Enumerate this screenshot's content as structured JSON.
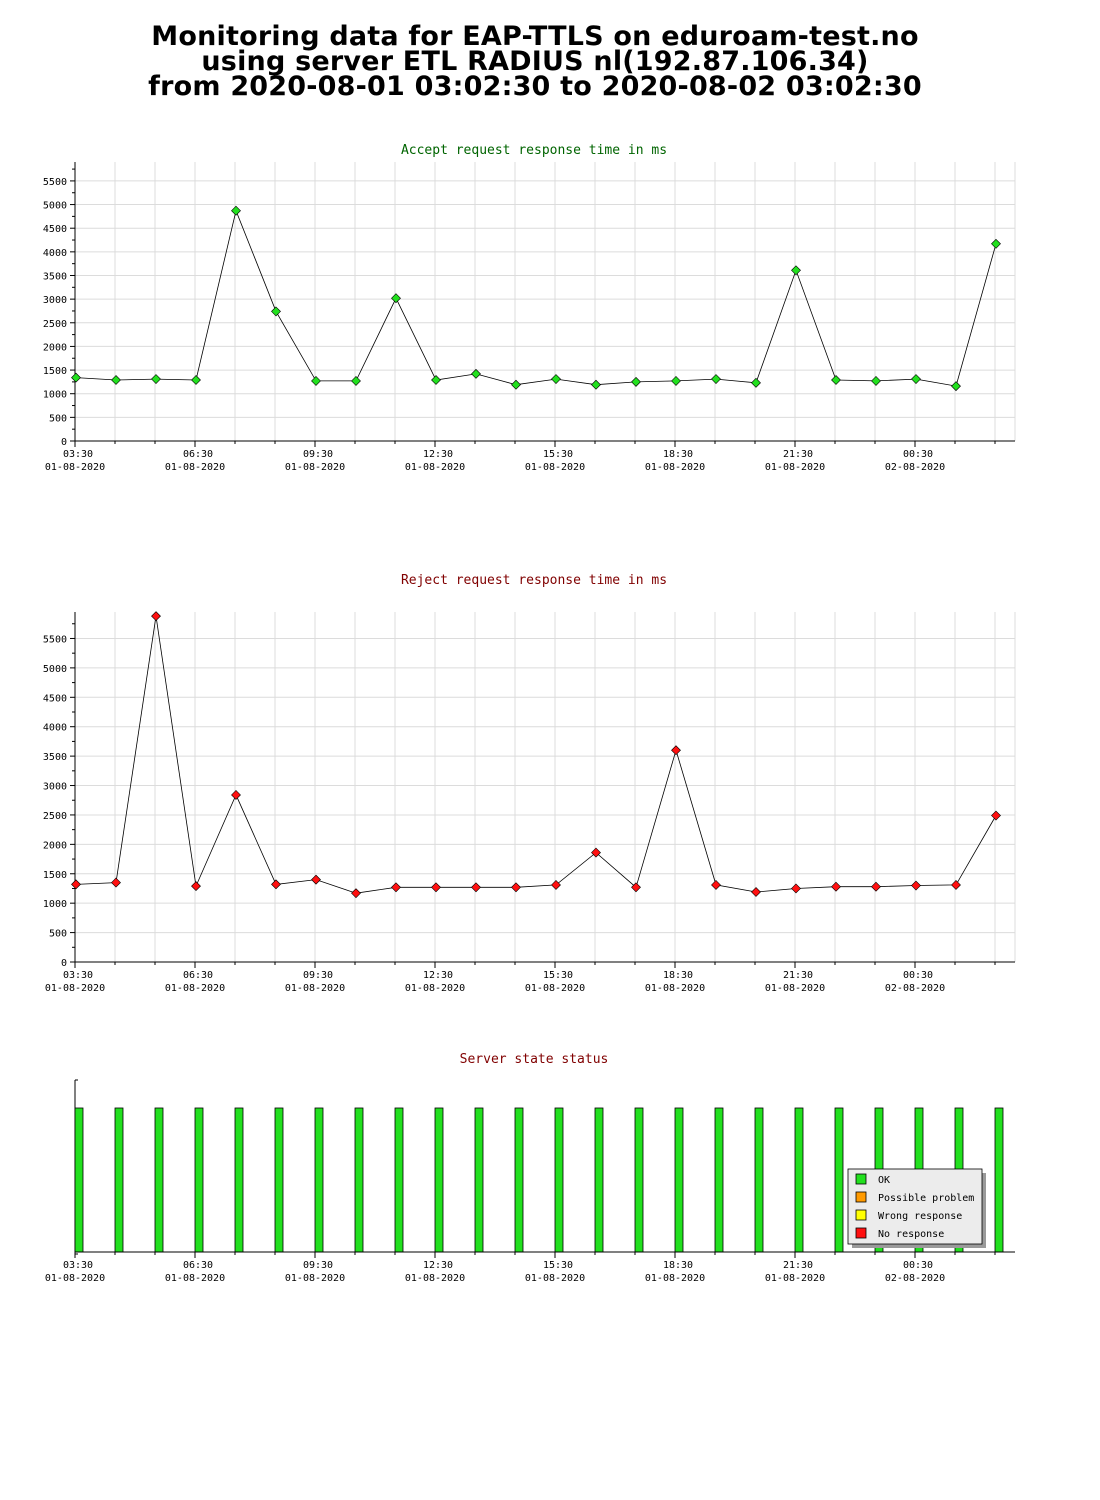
{
  "page": {
    "title_lines": [
      "Monitoring data for EAP-TTLS on eduroam-test.no",
      "using server ETL RADIUS nl(192.87.106.34)",
      "from 2020-08-01 03:02:30 to 2020-08-02 03:02:30"
    ]
  },
  "colors": {
    "accept_marker": "#22e01e",
    "reject_marker": "#ff1010",
    "ok": "#22e01e",
    "possible_problem": "#ff9a00",
    "wrong_response": "#ffff00",
    "no_response": "#ff1010",
    "accept_title": "#006400",
    "reject_title": "#800000",
    "grid": "#dcdcdc"
  },
  "x_axis": {
    "tick_labels": [
      [
        "03:30",
        "01-08-2020"
      ],
      [
        "06:30",
        "01-08-2020"
      ],
      [
        "09:30",
        "01-08-2020"
      ],
      [
        "12:30",
        "01-08-2020"
      ],
      [
        "15:30",
        "01-08-2020"
      ],
      [
        "18:30",
        "01-08-2020"
      ],
      [
        "21:30",
        "01-08-2020"
      ],
      [
        "00:30",
        "02-08-2020"
      ]
    ]
  },
  "chart_data": [
    {
      "type": "line",
      "title": "Accept request response time in ms",
      "x": [
        "03:30",
        "04:30",
        "05:30",
        "06:30",
        "07:30",
        "08:30",
        "09:30",
        "10:30",
        "11:30",
        "12:30",
        "13:30",
        "14:30",
        "15:30",
        "16:30",
        "17:30",
        "18:30",
        "19:30",
        "20:30",
        "21:30",
        "22:30",
        "23:30",
        "00:30",
        "01:30",
        "02:30"
      ],
      "values": [
        1340,
        1290,
        1310,
        1290,
        4870,
        2740,
        1270,
        1270,
        3020,
        1290,
        1420,
        1190,
        1310,
        1190,
        1250,
        1270,
        1310,
        1230,
        3610,
        1290,
        1270,
        1310,
        1160,
        4170
      ],
      "yticks": [
        0,
        500,
        1000,
        1500,
        2000,
        2500,
        3000,
        3500,
        4000,
        4500,
        5000,
        5500
      ],
      "ylim": [
        0,
        5900
      ],
      "grid": true
    },
    {
      "type": "line",
      "title": "Reject request response time in ms",
      "x": [
        "03:30",
        "04:30",
        "05:30",
        "06:30",
        "07:30",
        "08:30",
        "09:30",
        "10:30",
        "11:30",
        "12:30",
        "13:30",
        "14:30",
        "15:30",
        "16:30",
        "17:30",
        "18:30",
        "19:30",
        "20:30",
        "21:30",
        "22:30",
        "23:30",
        "00:30",
        "01:30",
        "02:30"
      ],
      "values": [
        1320,
        1350,
        5880,
        1290,
        2840,
        1320,
        1400,
        1170,
        1270,
        1270,
        1270,
        1270,
        1310,
        1860,
        1270,
        3600,
        1310,
        1190,
        1250,
        1280,
        1280,
        1300,
        1310,
        2490
      ],
      "yticks": [
        0,
        500,
        1000,
        1500,
        2000,
        2500,
        3000,
        3500,
        4000,
        4500,
        5000,
        5500
      ],
      "ylim": [
        0,
        5950
      ],
      "grid": true
    },
    {
      "type": "bar",
      "title": "Server state status",
      "x": [
        "03:30",
        "04:30",
        "05:30",
        "06:30",
        "07:30",
        "08:30",
        "09:30",
        "10:30",
        "11:30",
        "12:30",
        "13:30",
        "14:30",
        "15:30",
        "16:30",
        "17:30",
        "18:30",
        "19:30",
        "20:30",
        "21:30",
        "22:30",
        "23:30",
        "00:30",
        "01:30",
        "02:30"
      ],
      "states": [
        "OK",
        "OK",
        "OK",
        "OK",
        "OK",
        "OK",
        "OK",
        "OK",
        "OK",
        "OK",
        "OK",
        "OK",
        "OK",
        "OK",
        "OK",
        "OK",
        "OK",
        "OK",
        "OK",
        "OK",
        "OK",
        "OK",
        "OK",
        "OK"
      ],
      "legend": [
        "OK",
        "Possible problem",
        "Wrong response",
        "No response"
      ],
      "legend_position": "bottom-right"
    }
  ]
}
